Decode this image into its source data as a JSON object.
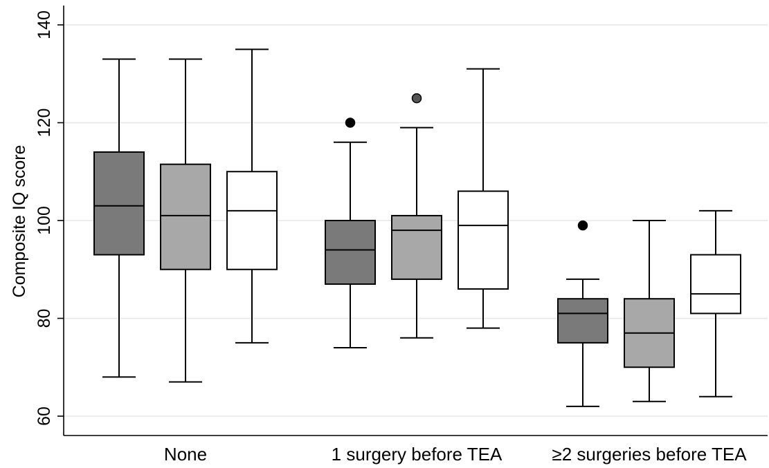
{
  "chart_data": {
    "type": "boxplot",
    "title": "",
    "xlabel": "",
    "ylabel": "Composite IQ score",
    "ylim": [
      57,
      143
    ],
    "yticks": [
      60,
      80,
      100,
      120,
      140
    ],
    "grid": true,
    "legend": "none",
    "categories": [
      "None",
      "1 surgery before TEA",
      "≥2 surgeries before TEA"
    ],
    "series": [
      {
        "color": "#7a7a7a",
        "boxes": [
          {
            "whisker_low": 68,
            "q1": 93,
            "median": 103,
            "q3": 114,
            "whisker_high": 133,
            "outliers": []
          },
          {
            "whisker_low": 74,
            "q1": 87,
            "median": 94,
            "q3": 100,
            "whisker_high": 116,
            "outliers": [
              120
            ]
          },
          {
            "whisker_low": 62,
            "q1": 75,
            "median": 81,
            "q3": 84,
            "whisker_high": 88,
            "outliers": [
              99
            ]
          }
        ]
      },
      {
        "color": "#a8a8a8",
        "boxes": [
          {
            "whisker_low": 67,
            "q1": 90,
            "median": 101,
            "q3": 111.5,
            "whisker_high": 133,
            "outliers": []
          },
          {
            "whisker_low": 76,
            "q1": 88,
            "median": 98,
            "q3": 101,
            "whisker_high": 119,
            "outliers": [
              125
            ]
          },
          {
            "whisker_low": 63,
            "q1": 70,
            "median": 77,
            "q3": 84,
            "whisker_high": 100,
            "outliers": []
          }
        ]
      },
      {
        "color": "#ffffff",
        "boxes": [
          {
            "whisker_low": 75,
            "q1": 90,
            "median": 102,
            "q3": 110,
            "whisker_high": 135,
            "outliers": []
          },
          {
            "whisker_low": 78,
            "q1": 86,
            "median": 99,
            "q3": 106,
            "whisker_high": 131,
            "outliers": []
          },
          {
            "whisker_low": 64,
            "q1": 81,
            "median": 85,
            "q3": 93,
            "whisker_high": 102,
            "outliers": []
          }
        ]
      }
    ]
  }
}
